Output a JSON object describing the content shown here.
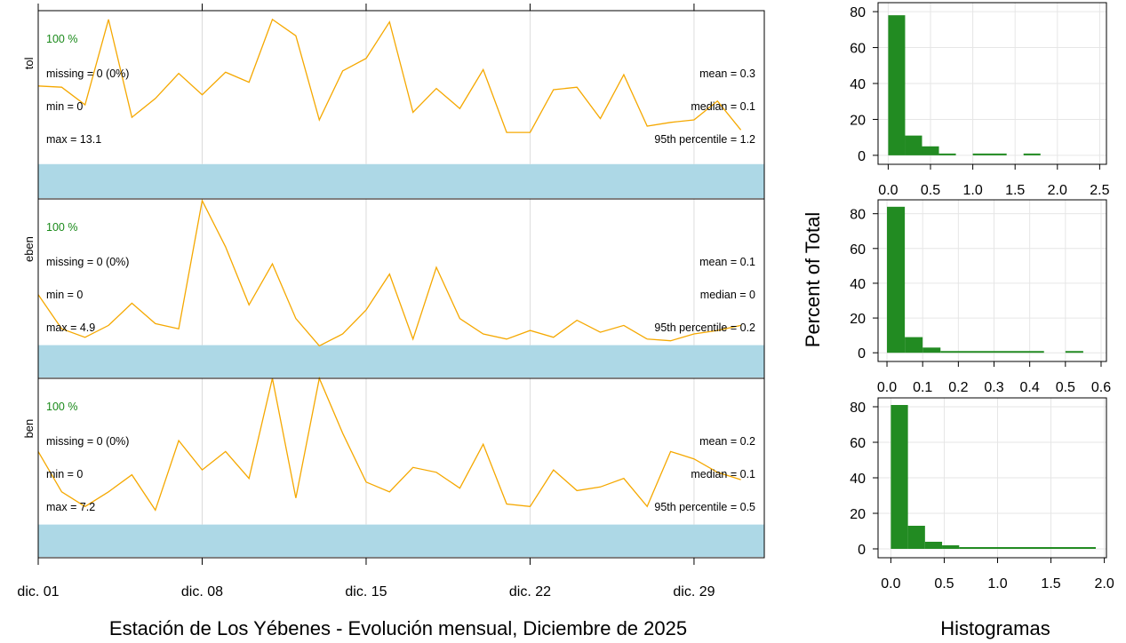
{
  "chart_data": [
    {
      "type": "line",
      "title": "",
      "xlabel": "Estación de Los Yébenes - Evolución mensual, Diciembre de 2025",
      "ylabel": "",
      "x_ticks": [
        "dic. 01",
        "dic. 08",
        "dic. 15",
        "dic. 22",
        "dic. 29"
      ],
      "x_tick_days": [
        1,
        8,
        15,
        22,
        29
      ],
      "x_range_days": [
        1,
        32
      ],
      "line_color": "#f5a800",
      "capture_band_color": "#add8e6",
      "panels": [
        {
          "name": "tol",
          "percent_label": "100 %",
          "stats_left": [
            "missing = 0 (0%)",
            "min = 0",
            "max = 13.1"
          ],
          "stats_right": [
            "mean = 0.3",
            "median = 0.1",
            "95th percentile = 1.2"
          ],
          "ylim": [
            -0.45,
            1.05
          ],
          "x": [
            1,
            2,
            3,
            4,
            5,
            6,
            7,
            8,
            9,
            10,
            11,
            12,
            13,
            14,
            15,
            16,
            17,
            18,
            19,
            20,
            21,
            22,
            23,
            24,
            25,
            26,
            27,
            28,
            29,
            30,
            31
          ],
          "values": [
            0.45,
            0.44,
            0.3,
            0.98,
            0.2,
            0.35,
            0.55,
            0.38,
            0.56,
            0.48,
            0.98,
            0.85,
            0.18,
            0.57,
            0.67,
            0.96,
            0.24,
            0.43,
            0.27,
            0.58,
            0.08,
            0.08,
            0.42,
            0.44,
            0.19,
            0.54,
            0.13,
            0.16,
            0.18,
            0.33,
            0.1
          ]
        },
        {
          "name": "eben",
          "percent_label": "100 %",
          "stats_left": [
            "missing = 0 (0%)",
            "min = 0",
            "max = 4.9"
          ],
          "stats_right": [
            "mean = 0.1",
            "median = 0",
            "95th percentile = 0.2"
          ],
          "ylim": [
            -0.19,
            0.86
          ],
          "x": [
            1,
            2,
            3,
            4,
            5,
            6,
            7,
            8,
            9,
            10,
            11,
            12,
            13,
            14,
            15,
            16,
            17,
            18,
            19,
            20,
            21,
            22,
            23,
            24,
            25,
            26,
            27,
            28,
            29,
            30,
            31
          ],
          "values": [
            0.3,
            0.1,
            0.05,
            0.12,
            0.25,
            0.13,
            0.1,
            0.85,
            0.58,
            0.24,
            0.48,
            0.16,
            0.0,
            0.07,
            0.21,
            0.42,
            0.04,
            0.46,
            0.16,
            0.07,
            0.04,
            0.09,
            0.05,
            0.15,
            0.08,
            0.12,
            0.04,
            0.03,
            0.07,
            0.09,
            0.12
          ]
        },
        {
          "name": "ben",
          "percent_label": "100 %",
          "stats_left": [
            "missing = 0 (0%)",
            "min = 0",
            "max = 7.2"
          ],
          "stats_right": [
            "mean = 0.2",
            "median = 0.1",
            "95th percentile = 0.5"
          ],
          "ylim": [
            -0.27,
            1.2
          ],
          "x": [
            1,
            2,
            3,
            4,
            5,
            6,
            7,
            8,
            9,
            10,
            11,
            12,
            13,
            14,
            15,
            16,
            17,
            18,
            19,
            20,
            21,
            22,
            23,
            24,
            25,
            26,
            27,
            28,
            29,
            30,
            31
          ],
          "values": [
            0.6,
            0.27,
            0.15,
            0.27,
            0.41,
            0.12,
            0.69,
            0.45,
            0.6,
            0.38,
            1.2,
            0.22,
            1.2,
            0.75,
            0.35,
            0.27,
            0.47,
            0.43,
            0.3,
            0.66,
            0.17,
            0.15,
            0.45,
            0.28,
            0.31,
            0.38,
            0.15,
            0.6,
            0.54,
            0.43,
            0.37
          ]
        }
      ]
    },
    {
      "type": "bar",
      "title": "",
      "xlabel": "Histogramas",
      "ylabel": "Percent of Total",
      "bar_color": "#228b22",
      "y_ticks": [
        "0",
        "20",
        "40",
        "60",
        "80"
      ],
      "panels": [
        {
          "name": "tol",
          "xlim": [
            -0.12,
            2.58
          ],
          "ylim": [
            -5,
            85
          ],
          "x_ticks": [
            "0.0",
            "0.5",
            "1.0",
            "1.5",
            "2.0",
            "2.5"
          ],
          "x_tick_values": [
            0,
            0.5,
            1.0,
            1.5,
            2.0,
            2.5
          ],
          "bins": [
            {
              "x0": 0.0,
              "x1": 0.2,
              "value": 78
            },
            {
              "x0": 0.2,
              "x1": 0.4,
              "value": 11
            },
            {
              "x0": 0.4,
              "x1": 0.6,
              "value": 5
            },
            {
              "x0": 0.6,
              "x1": 0.8,
              "value": 1
            },
            {
              "x0": 1.0,
              "x1": 1.4,
              "value": 1
            },
            {
              "x0": 1.6,
              "x1": 1.8,
              "value": 1
            }
          ]
        },
        {
          "name": "eben",
          "xlim": [
            -0.025,
            0.615
          ],
          "ylim": [
            -5,
            88
          ],
          "x_ticks": [
            "0.0",
            "0.1",
            "0.2",
            "0.3",
            "0.4",
            "0.5",
            "0.6"
          ],
          "x_tick_values": [
            0,
            0.1,
            0.2,
            0.3,
            0.4,
            0.5,
            0.6
          ],
          "bins": [
            {
              "x0": 0.0,
              "x1": 0.05,
              "value": 84
            },
            {
              "x0": 0.05,
              "x1": 0.1,
              "value": 9
            },
            {
              "x0": 0.1,
              "x1": 0.15,
              "value": 3
            },
            {
              "x0": 0.15,
              "x1": 0.44,
              "value": 1
            },
            {
              "x0": 0.5,
              "x1": 0.55,
              "value": 1
            }
          ]
        },
        {
          "name": "ben",
          "xlim": [
            -0.12,
            2.02
          ],
          "ylim": [
            -5,
            85
          ],
          "x_ticks": [
            "0.0",
            "0.5",
            "1.0",
            "1.5",
            "2.0"
          ],
          "x_tick_values": [
            0,
            0.5,
            1.0,
            1.5,
            2.0
          ],
          "bins": [
            {
              "x0": 0.0,
              "x1": 0.16,
              "value": 81
            },
            {
              "x0": 0.16,
              "x1": 0.32,
              "value": 13
            },
            {
              "x0": 0.32,
              "x1": 0.48,
              "value": 4
            },
            {
              "x0": 0.48,
              "x1": 0.64,
              "value": 2
            },
            {
              "x0": 0.64,
              "x1": 1.92,
              "value": 1
            }
          ]
        }
      ]
    }
  ]
}
